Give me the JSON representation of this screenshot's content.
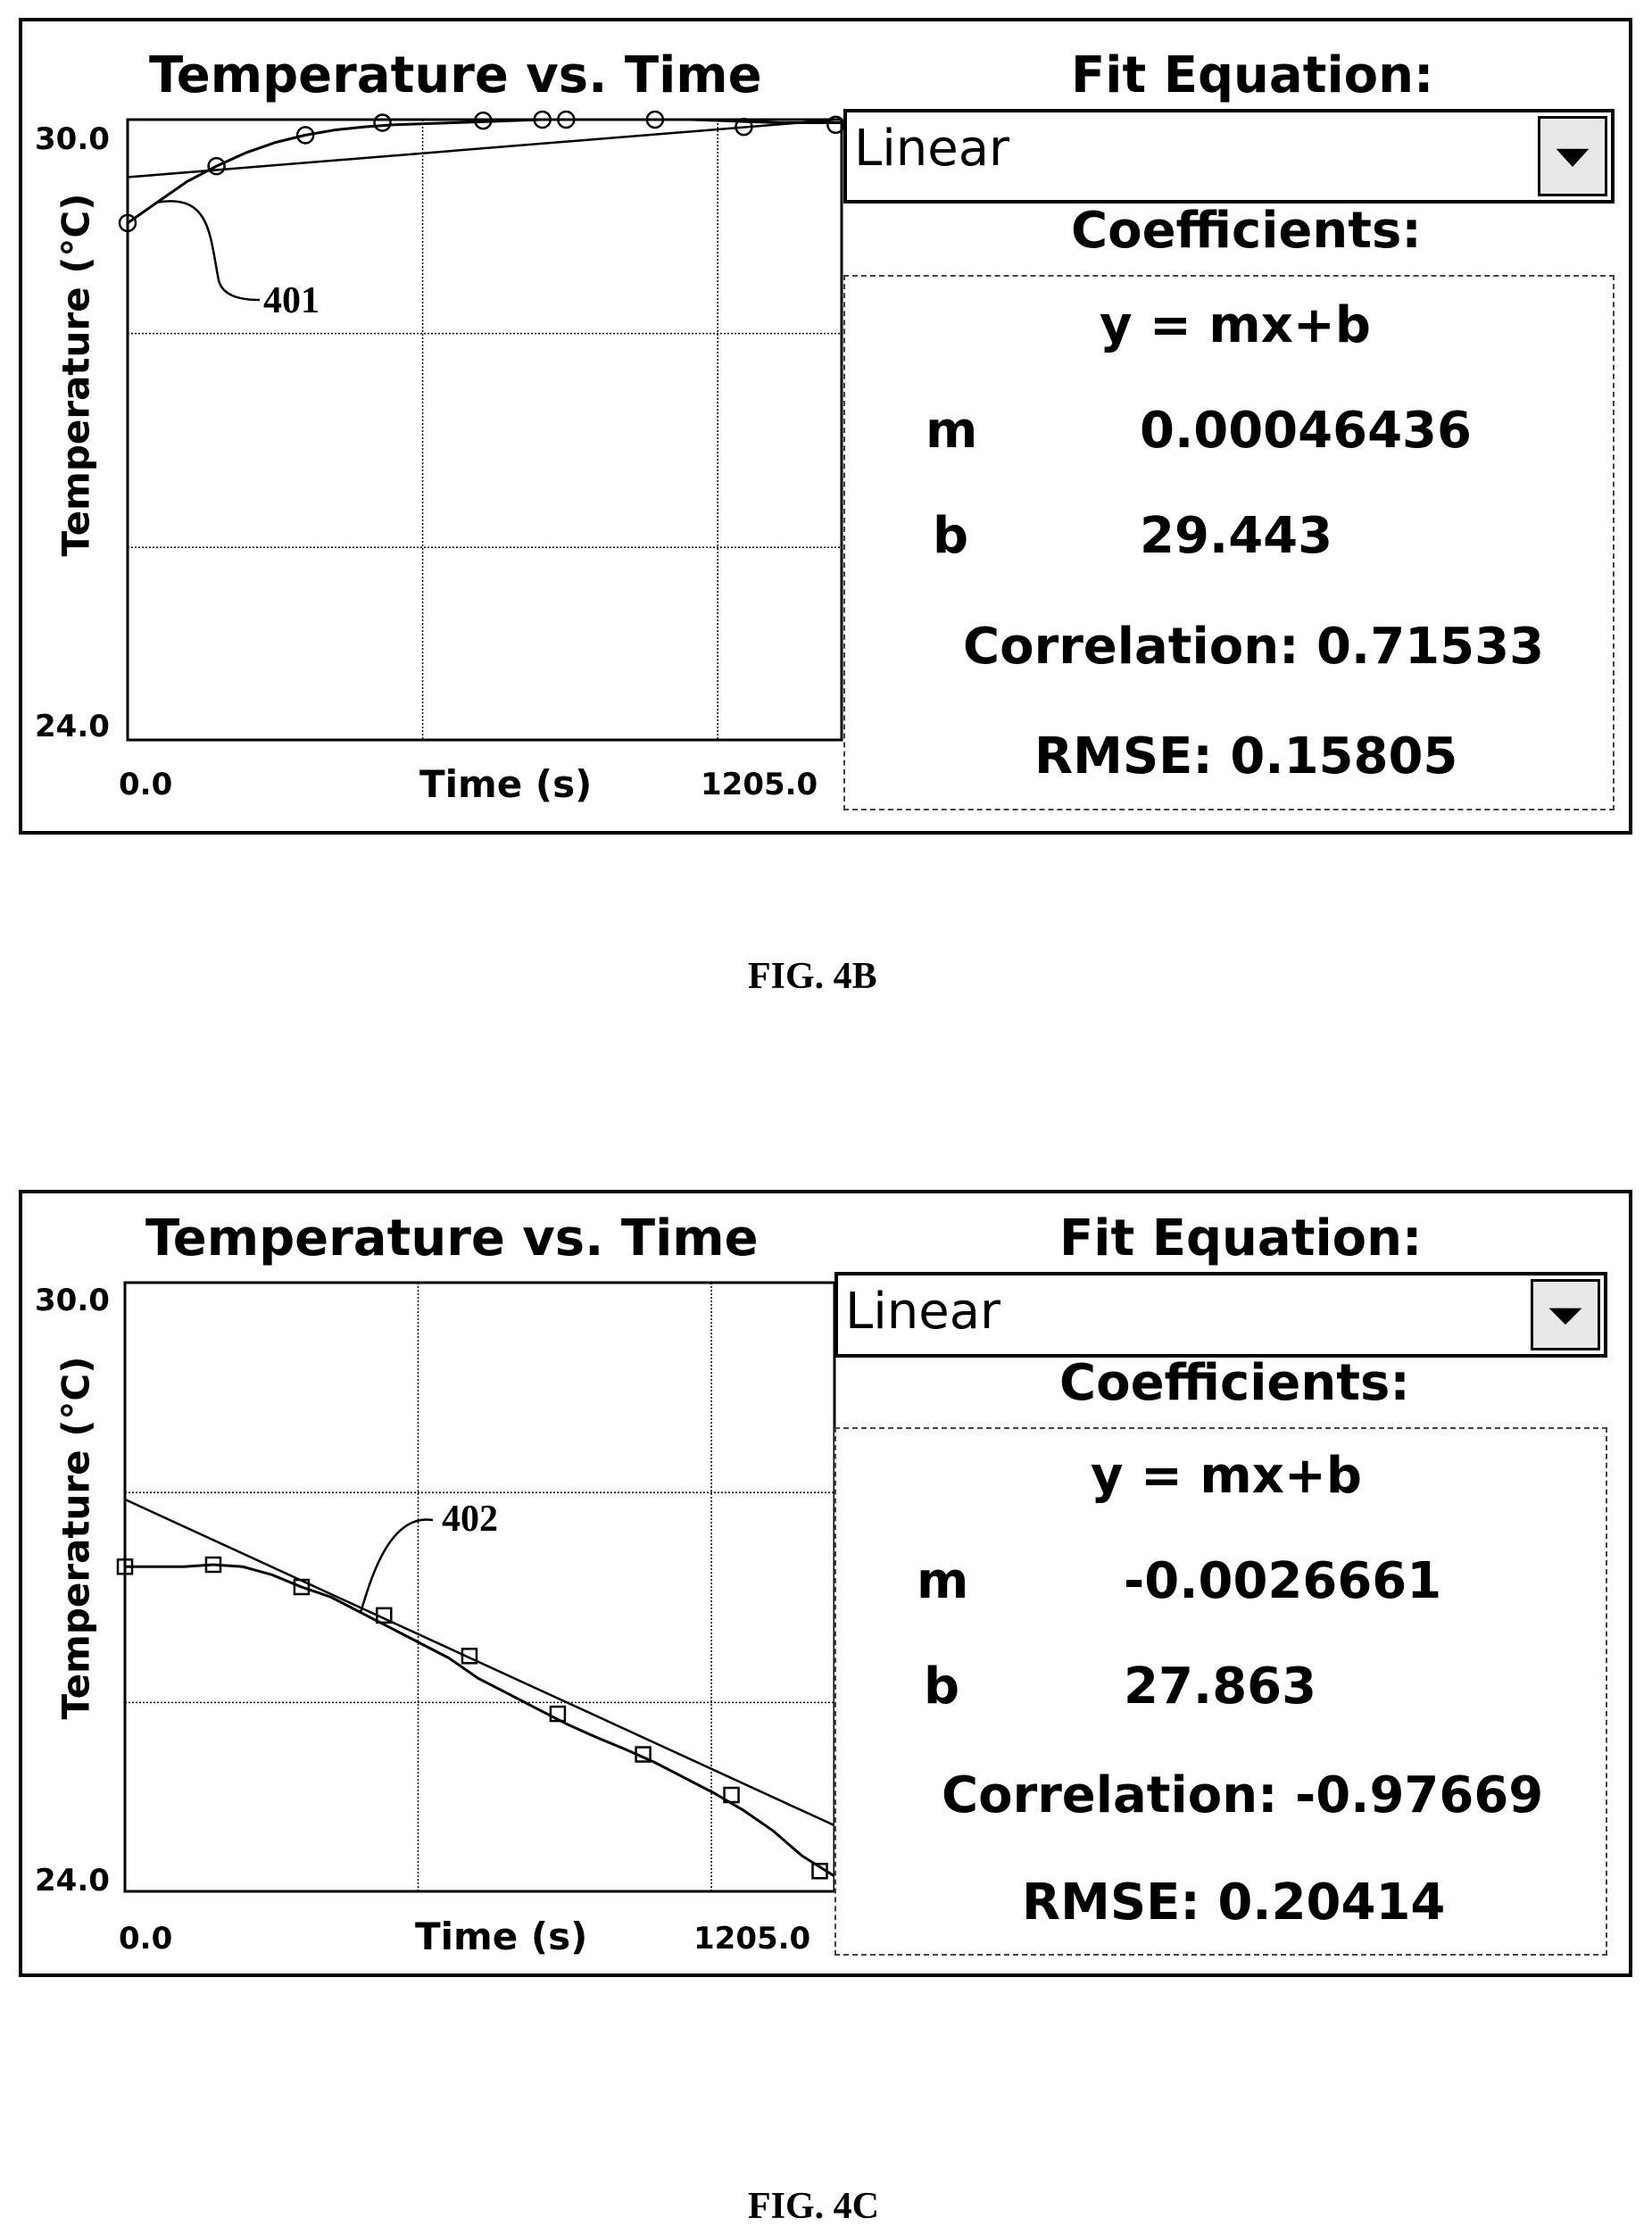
{
  "figures": [
    {
      "caption": "FIG. 4B",
      "chart_title": "Temperature vs. Time",
      "ylabel": "Temperature (°C)",
      "xlabel": "Time (s)",
      "y_ticks": [
        "30.0",
        "24.0"
      ],
      "x_ticks": [
        "0.0",
        "1205.0"
      ],
      "callout": "401",
      "fit_equation_label": "Fit Equation:",
      "fit_equation_value": "Linear",
      "coefficients_label": "Coefficients:",
      "equation": "y = mx+b",
      "m_label": "m",
      "m_value": "0.00046436",
      "b_label": "b",
      "b_value": "29.443",
      "correlation": "Correlation: 0.71533",
      "rmse": "RMSE: 0.15805"
    },
    {
      "caption": "FIG. 4C",
      "chart_title": "Temperature vs. Time",
      "ylabel": "Temperature (°C)",
      "xlabel": "Time (s)",
      "y_ticks": [
        "30.0",
        "24.0"
      ],
      "x_ticks": [
        "0.0",
        "1205.0"
      ],
      "callout": "402",
      "fit_equation_label": "Fit Equation:",
      "fit_equation_value": "Linear",
      "coefficients_label": "Coefficients:",
      "equation": "y = mx+b",
      "m_label": "m",
      "m_value": "-0.0026661",
      "b_label": "b",
      "b_value": "27.863",
      "correlation": "Correlation: -0.97669",
      "rmse": "RMSE: 0.20414"
    }
  ],
  "chart_data": [
    {
      "type": "scatter",
      "title": "Temperature vs. Time",
      "xlabel": "Time (s)",
      "ylabel": "Temperature (°C)",
      "xlim": [
        0,
        1205
      ],
      "ylim": [
        24,
        30
      ],
      "grid": true,
      "series": [
        {
          "x": [
            0,
            50,
            100,
            150,
            200,
            250,
            300,
            350,
            400,
            450,
            500,
            550,
            600,
            650,
            700,
            750,
            800,
            850,
            900,
            950,
            1000,
            1050,
            1100,
            1150,
            1205
          ],
          "y": [
            29.0,
            29.2,
            29.4,
            29.55,
            29.68,
            29.78,
            29.85,
            29.9,
            29.93,
            29.95,
            29.96,
            29.97,
            29.98,
            29.99,
            30.0,
            30.0,
            30.0,
            30.0,
            30.0,
            30.0,
            29.99,
            29.98,
            29.97,
            29.97,
            29.97
          ]
        },
        {
          "x": [
            0,
            1205
          ],
          "y": [
            29.443,
            30.003
          ]
        }
      ],
      "markers_x": [
        0,
        150,
        300,
        430,
        600,
        700,
        740,
        890,
        1040,
        1195
      ],
      "markers_y": [
        29.0,
        29.55,
        29.85,
        29.97,
        29.99,
        30.0,
        30.0,
        30.0,
        29.93,
        29.95
      ]
    },
    {
      "type": "scatter",
      "title": "Temperature vs. Time",
      "xlabel": "Time (s)",
      "ylabel": "Temperature (°C)",
      "xlim": [
        0,
        1205
      ],
      "ylim": [
        24,
        30
      ],
      "grid": true,
      "series": [
        {
          "x": [
            0,
            50,
            100,
            150,
            200,
            250,
            300,
            350,
            400,
            450,
            500,
            550,
            600,
            650,
            700,
            750,
            800,
            850,
            900,
            950,
            1000,
            1050,
            1100,
            1150,
            1205
          ],
          "y": [
            27.2,
            27.2,
            27.2,
            27.22,
            27.2,
            27.12,
            27.0,
            26.9,
            26.75,
            26.6,
            26.45,
            26.3,
            26.1,
            25.95,
            25.8,
            25.65,
            25.52,
            25.4,
            25.27,
            25.12,
            24.97,
            24.8,
            24.6,
            24.35,
            24.15
          ]
        },
        {
          "x": [
            0,
            1205
          ],
          "y": [
            27.863,
            24.65
          ]
        }
      ],
      "markers_x": [
        0,
        150,
        300,
        440,
        585,
        735,
        880,
        1030,
        1180
      ],
      "markers_y": [
        27.2,
        27.22,
        27.0,
        26.72,
        26.32,
        25.75,
        25.35,
        24.95,
        24.2
      ]
    }
  ]
}
